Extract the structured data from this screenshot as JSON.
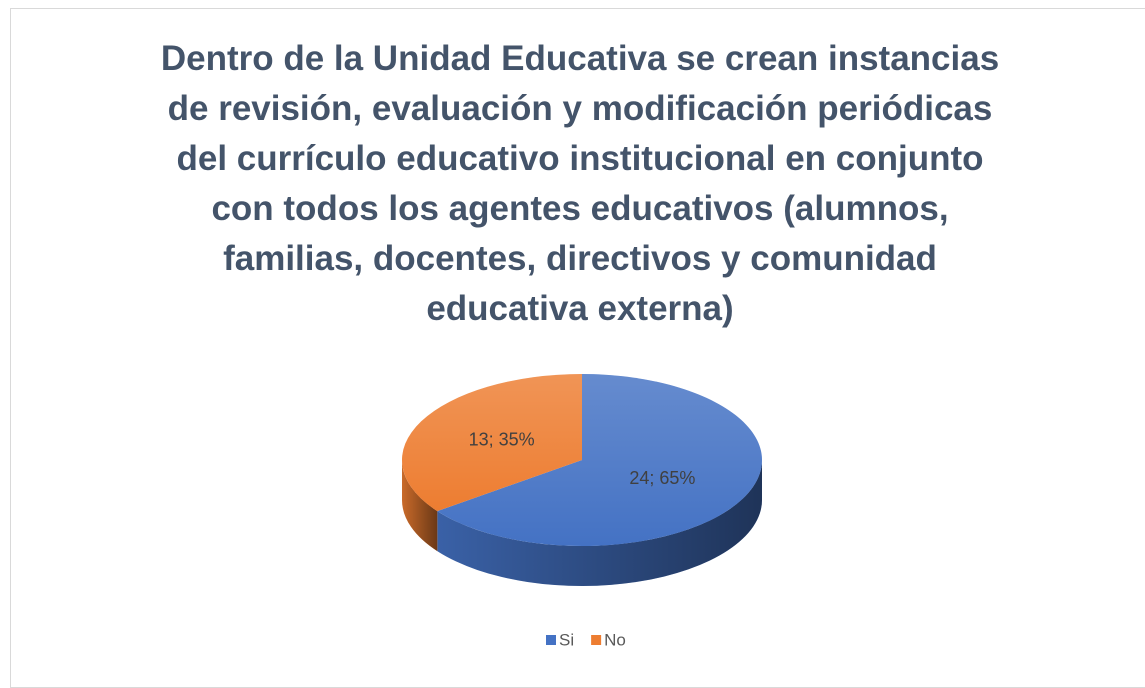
{
  "chart_data": {
    "type": "pie",
    "title": "Dentro de la Unidad Educativa se crean instancias\nde revisión, evaluación y modificación periódicas\ndel currículo educativo institucional en conjunto\ncon todos los agentes educativos (alumnos,\nfamilias, docentes, directivos y comunidad\neducativa externa)",
    "categories": [
      "Si",
      "No"
    ],
    "values": [
      24,
      13
    ],
    "value_labels": [
      "24; 65%",
      "13; 35%"
    ],
    "colors": [
      "#4472c4",
      "#ed7d31"
    ],
    "legend": "bottom"
  }
}
